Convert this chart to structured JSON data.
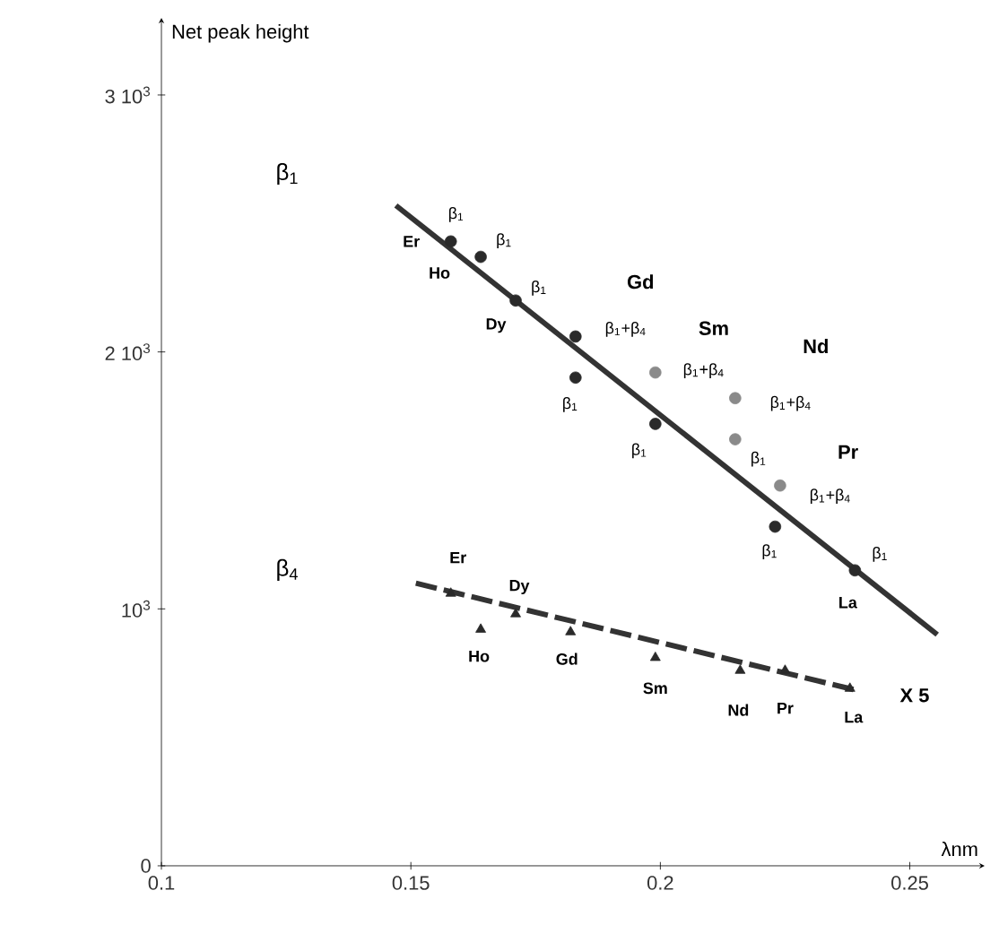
{
  "chart_data": {
    "type": "scatter",
    "xlabel": "λnm",
    "ylabel": "Net peak height",
    "xlim": [
      0.1,
      0.265
    ],
    "ylim": [
      0,
      3300
    ],
    "xticks": [
      0.1,
      0.15,
      0.2,
      0.25
    ],
    "yticks": [
      {
        "value": 0,
        "label": "0"
      },
      {
        "value": 1000,
        "label": "10$^{3}$"
      },
      {
        "value": 2000,
        "label": "2 10$^{3}$"
      },
      {
        "value": 3000,
        "label": "3 10$^{3}$"
      }
    ],
    "grid": false,
    "series": [
      {
        "marker": "circle",
        "color": "#2a2a2a",
        "x": [
          0.158,
          0.164,
          0.171,
          0.183,
          0.183,
          0.199,
          0.223,
          0.239
        ],
        "values": [
          2430,
          2370,
          2200,
          2060,
          1900,
          1720,
          1320,
          1150
        ]
      },
      {
        "marker": "circle",
        "color": "#8a8a8a",
        "x": [
          0.199,
          0.215,
          0.215,
          0.224
        ],
        "values": [
          1920,
          1820,
          1660,
          1480
        ]
      },
      {
        "type": "line",
        "marker": "none",
        "line_style": "solid",
        "color": "#333333",
        "x": [
          0.147,
          0.2555
        ],
        "values": [
          2570,
          900
        ]
      },
      {
        "marker": "triangle",
        "color": "#2a2a2a",
        "x": [
          0.158,
          0.164,
          0.171,
          0.182,
          0.199,
          0.216,
          0.225,
          0.238
        ],
        "values": [
          1060,
          920,
          980,
          910,
          810,
          760,
          760,
          690
        ]
      },
      {
        "type": "line",
        "marker": "none",
        "line_style": "dashed",
        "color": "#333333",
        "x": [
          0.151,
          0.24
        ],
        "values": [
          1100,
          680
        ]
      }
    ],
    "annotations": [
      "β$_{1}$",
      "β$_{4}$",
      {
        "text": "Er",
        "x": 0.158,
        "y": 2430
      },
      {
        "text": "Ho",
        "x": 0.164,
        "y": 2370
      },
      {
        "text": "Dy",
        "x": 0.171,
        "y": 2200
      },
      "Gd",
      "Sm",
      "Nd",
      "Pr",
      {
        "text": "La",
        "x": 0.239,
        "y": 1150
      },
      {
        "text": "β$_{1}$",
        "x": 0.158,
        "y": 2430
      },
      {
        "text": "β$_{1}$",
        "x": 0.164,
        "y": 2370
      },
      {
        "text": "β$_{1}$",
        "x": 0.171,
        "y": 2200
      },
      {
        "text": "β$_{1}$+β$_{4}$",
        "x": 0.183,
        "y": 2060
      },
      {
        "text": "β$_{1}$",
        "x": 0.183,
        "y": 1900
      },
      {
        "text": "β$_{1}$+β$_{4}$",
        "x": 0.199,
        "y": 1920
      },
      {
        "text": "β$_{1}$",
        "x": 0.199,
        "y": 1720
      },
      {
        "text": "β$_{1}$+β$_{4}$",
        "x": 0.215,
        "y": 1820
      },
      {
        "text": "β$_{1}$",
        "x": 0.215,
        "y": 1660
      },
      {
        "text": "β$_{1}$+β$_{4}$",
        "x": 0.224,
        "y": 1480
      },
      {
        "text": "β$_{1}$",
        "x": 0.223,
        "y": 1320
      },
      {
        "text": "β$_{1}$",
        "x": 0.239,
        "y": 1150
      },
      {
        "text": "Er",
        "x": 0.158,
        "y": 1060
      },
      {
        "text": "Dy",
        "x": 0.171,
        "y": 980
      },
      {
        "text": "Ho",
        "x": 0.164,
        "y": 920
      },
      {
        "text": "Gd",
        "x": 0.182,
        "y": 910
      },
      {
        "text": "Sm",
        "x": 0.199,
        "y": 810
      },
      {
        "text": "Nd",
        "x": 0.216,
        "y": 760
      },
      {
        "text": "Pr",
        "x": 0.225,
        "y": 760
      },
      {
        "text": "La",
        "x": 0.238,
        "y": 690
      },
      "X 5"
    ]
  }
}
